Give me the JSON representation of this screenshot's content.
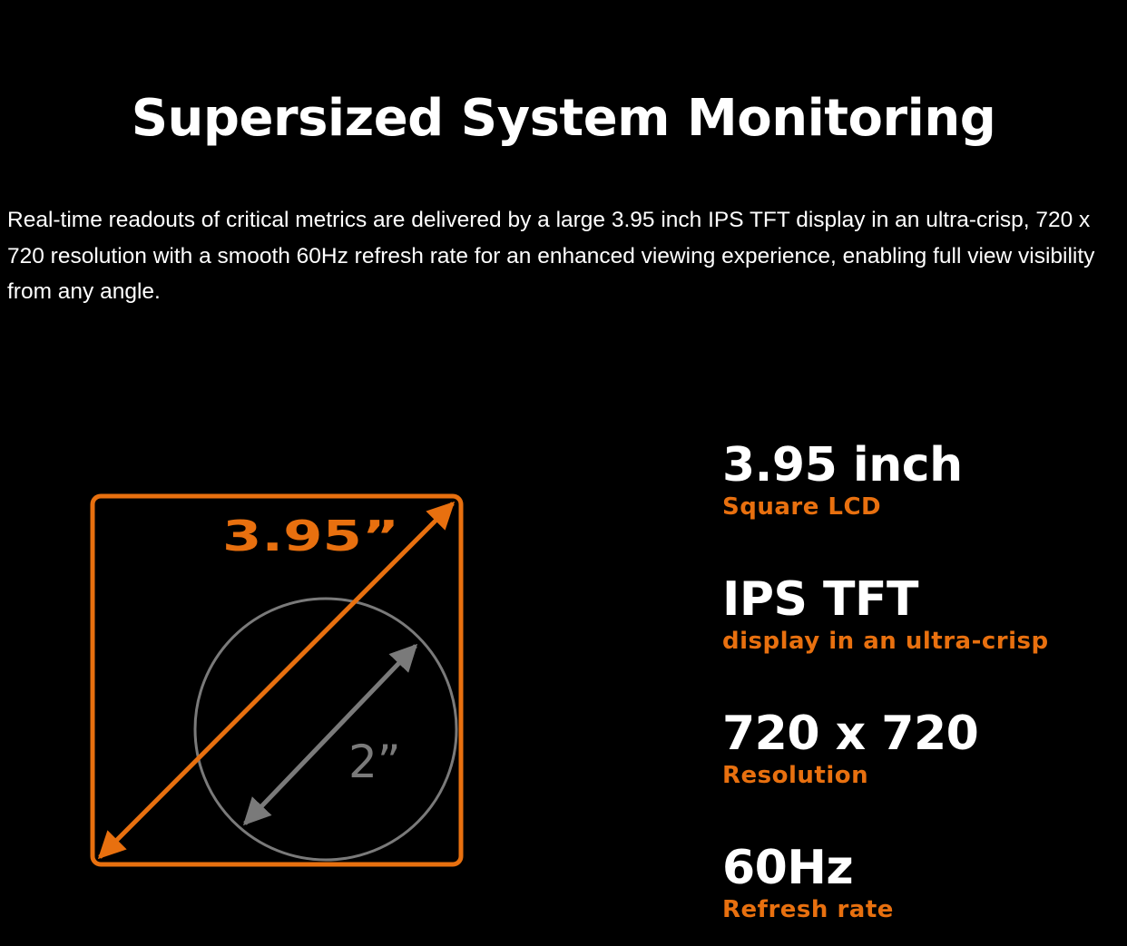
{
  "header": {
    "title": "Supersized System Monitoring"
  },
  "description": "Real-time readouts of critical metrics are delivered by a large 3.95 inch IPS TFT display in an ultra-crisp, 720 x 720 resolution with a smooth 60Hz refresh rate for an enhanced viewing experience, enabling full view visibility from any angle.",
  "diagram": {
    "outer_label": "3.95”",
    "inner_label": "2”"
  },
  "specs": [
    {
      "value": "3.95 inch",
      "label": "Square LCD"
    },
    {
      "value": "IPS TFT",
      "label": "display in an ultra-crisp"
    },
    {
      "value": "720 x 720",
      "label": "Resolution"
    },
    {
      "value": "60Hz",
      "label": "Refresh rate"
    }
  ],
  "colors": {
    "accent": "#e8700f",
    "diagram_gray": "#7a7a7a",
    "background": "#000000"
  }
}
